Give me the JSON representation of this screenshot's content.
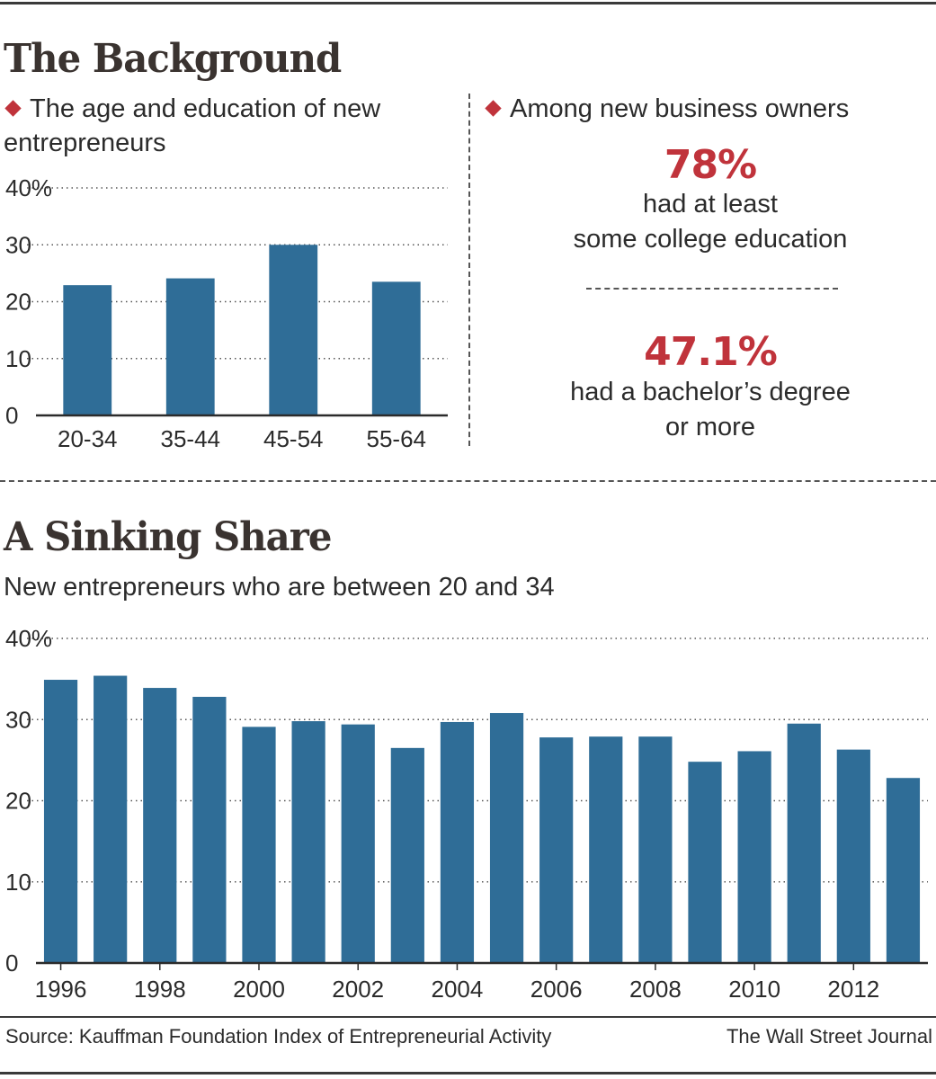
{
  "top_section": {
    "title": "The Background",
    "left_subtitle": "The age and education of new entrepreneurs",
    "right_subtitle": "Among new business owners",
    "stat1": {
      "value": "78%",
      "line1": "had at least",
      "line2": "some college education"
    },
    "stat2": {
      "value": "47.1%",
      "line1": "had a bachelor’s degree",
      "line2": "or more"
    }
  },
  "bottom_section": {
    "title": "A Sinking Share",
    "subtitle": "New entrepreneurs who are between 20 and 34"
  },
  "footer": {
    "source": "Source: Kauffman Foundation Index of Entrepreneurial Activity",
    "credit": "The Wall Street Journal"
  },
  "colors": {
    "bar": "#2f6d97",
    "accent": "#c0333b"
  },
  "chart_data": [
    {
      "id": "age_chart",
      "type": "bar",
      "title": "The age and education of new entrepreneurs",
      "categories": [
        "20-34",
        "35-44",
        "45-54",
        "55-64"
      ],
      "values": [
        22.9,
        24.1,
        30.0,
        23.5
      ],
      "ylim": [
        0,
        40
      ],
      "yticks": [
        0,
        10,
        20,
        30,
        40
      ],
      "ytick_labels": [
        "0",
        "10",
        "20",
        "30",
        "40%"
      ],
      "grid": true
    },
    {
      "id": "share_chart",
      "type": "bar",
      "title": "New entrepreneurs who are between 20 and 34",
      "categories": [
        "1996",
        "1997",
        "1998",
        "1999",
        "2000",
        "2001",
        "2002",
        "2003",
        "2004",
        "2005",
        "2006",
        "2007",
        "2008",
        "2009",
        "2010",
        "2011",
        "2012",
        "2013"
      ],
      "values": [
        34.9,
        35.4,
        33.9,
        32.8,
        29.1,
        29.8,
        29.4,
        26.5,
        29.7,
        30.8,
        27.8,
        27.9,
        27.9,
        24.8,
        26.1,
        29.5,
        26.3,
        22.8
      ],
      "xtick_labels": [
        "1996",
        "1998",
        "2000",
        "2002",
        "2004",
        "2006",
        "2008",
        "2010",
        "2012"
      ],
      "ylim": [
        0,
        40
      ],
      "yticks": [
        0,
        10,
        20,
        30,
        40
      ],
      "ytick_labels": [
        "0",
        "10",
        "20",
        "30",
        "40%"
      ],
      "grid": true
    }
  ]
}
